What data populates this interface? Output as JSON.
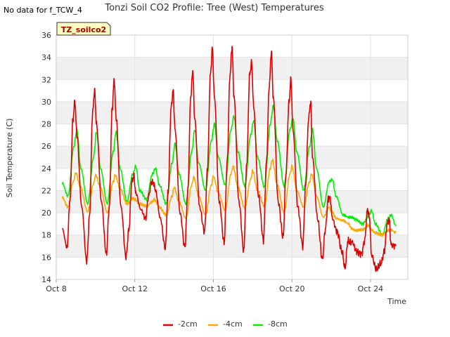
{
  "page": {
    "no_data_note": "No data for f_TCW_4",
    "site_badge": "TZ_soilco2"
  },
  "colors": {
    "series_2cm": "#dd0000",
    "series_4cm": "#ffa500",
    "series_8cm": "#00ee00",
    "badge_bg": "#ffffc0",
    "badge_text": "#aa0000",
    "band": "#f0f0f0"
  },
  "chart_data": {
    "type": "line",
    "title": "Tonzi Soil CO2 Profile: Tree (West) Temperatures",
    "xlabel": "Time",
    "ylabel": "Soil Temperature (C)",
    "xlim": [
      8,
      25.9
    ],
    "ylim": [
      14,
      36
    ],
    "x_ticks": [
      {
        "value": 8,
        "label": "Oct 8"
      },
      {
        "value": 12,
        "label": "Oct 12"
      },
      {
        "value": 16,
        "label": "Oct 16"
      },
      {
        "value": 20,
        "label": "Oct 20"
      },
      {
        "value": 24,
        "label": "Oct 24"
      }
    ],
    "y_ticks": [
      14,
      16,
      18,
      20,
      22,
      24,
      26,
      28,
      30,
      32,
      34,
      36
    ],
    "legend": {
      "position": "bottom",
      "labels": [
        "-2cm",
        "-4cm",
        "-8cm"
      ]
    },
    "series": [
      {
        "name": "-2cm",
        "x": [
          8.3,
          8.55,
          8.7,
          8.85,
          8.95,
          9.05,
          9.3,
          9.55,
          9.7,
          9.85,
          9.95,
          10.05,
          10.3,
          10.55,
          10.7,
          10.85,
          10.95,
          11.05,
          11.3,
          11.55,
          11.7,
          11.85,
          11.95,
          12.05,
          12.3,
          12.55,
          12.7,
          12.85,
          12.95,
          13.05,
          13.3,
          13.55,
          13.7,
          13.85,
          13.95,
          14.05,
          14.3,
          14.55,
          14.7,
          14.85,
          14.95,
          15.05,
          15.3,
          15.55,
          15.7,
          15.85,
          15.95,
          16.05,
          16.3,
          16.55,
          16.7,
          16.85,
          16.95,
          17.05,
          17.3,
          17.55,
          17.7,
          17.85,
          17.95,
          18.05,
          18.3,
          18.55,
          18.7,
          18.85,
          18.95,
          19.05,
          19.3,
          19.55,
          19.7,
          19.85,
          19.95,
          20.05,
          20.3,
          20.55,
          20.7,
          20.85,
          20.95,
          21.05,
          21.3,
          21.55,
          21.7,
          21.85,
          21.95,
          22.05,
          22.3,
          22.55,
          22.7,
          22.85,
          22.95,
          23.05,
          23.3,
          23.55,
          23.7,
          23.85,
          23.95,
          24.05,
          24.3,
          24.55,
          24.7,
          24.85,
          24.95,
          25.05,
          25.3
        ],
        "values": [
          18.6,
          16.9,
          21.2,
          28.4,
          30.0,
          27.0,
          20.5,
          15.6,
          19.8,
          29.0,
          31.0,
          28.0,
          21.0,
          16.3,
          20.5,
          29.5,
          32.0,
          28.5,
          20.5,
          16.0,
          18.5,
          22.8,
          23.3,
          21.8,
          20.3,
          19.5,
          21.5,
          22.8,
          22.7,
          22.0,
          19.5,
          16.8,
          22.0,
          29.5,
          31.0,
          27.5,
          20.0,
          16.9,
          22.0,
          30.5,
          32.8,
          28.5,
          20.5,
          18.3,
          24.0,
          32.5,
          34.8,
          30.5,
          21.0,
          17.3,
          24.5,
          32.5,
          35.0,
          30.5,
          21.0,
          16.6,
          24.5,
          32.5,
          33.5,
          29.5,
          21.5,
          17.5,
          24.5,
          31.5,
          34.5,
          30.5,
          21.0,
          17.8,
          23.5,
          30.0,
          32.0,
          27.5,
          20.5,
          17.0,
          22.5,
          28.5,
          30.0,
          25.0,
          19.5,
          15.8,
          18.5,
          21.3,
          21.3,
          19.5,
          18.3,
          16.5,
          15.0,
          17.5,
          17.3,
          17.4,
          16.5,
          16.3,
          17.5,
          20.3,
          19.5,
          16.2,
          14.9,
          15.5,
          16.5,
          19.0,
          19.4,
          17.1,
          17.0
        ]
      },
      {
        "name": "-4cm",
        "x": [
          8.3,
          8.6,
          8.85,
          9.0,
          9.2,
          9.6,
          9.9,
          10.0,
          10.25,
          10.6,
          10.9,
          11.0,
          11.25,
          11.6,
          11.9,
          12.0,
          12.25,
          12.6,
          12.9,
          13.0,
          13.25,
          13.6,
          13.9,
          14.0,
          14.25,
          14.6,
          14.9,
          15.0,
          15.25,
          15.6,
          15.9,
          16.0,
          16.25,
          16.6,
          16.9,
          17.0,
          17.25,
          17.6,
          17.9,
          18.0,
          18.25,
          18.6,
          18.9,
          19.0,
          19.25,
          19.6,
          19.9,
          20.0,
          20.25,
          20.6,
          20.9,
          21.0,
          21.25,
          21.6,
          21.9,
          22.0,
          22.25,
          22.6,
          22.9,
          23.0,
          23.25,
          23.6,
          23.9,
          24.0,
          24.25,
          24.6,
          24.9,
          25.0,
          25.3
        ],
        "values": [
          21.4,
          20.5,
          22.7,
          23.6,
          22.5,
          20.1,
          22.6,
          23.4,
          22.3,
          20.0,
          22.8,
          23.4,
          22.2,
          20.8,
          21.3,
          21.2,
          20.8,
          20.6,
          21.0,
          21.2,
          20.5,
          19.8,
          21.5,
          22.3,
          21.0,
          19.5,
          22.5,
          23.2,
          21.5,
          19.8,
          22.5,
          23.3,
          21.8,
          20.2,
          23.5,
          24.2,
          22.3,
          20.4,
          23.0,
          23.8,
          22.0,
          20.6,
          24.0,
          24.8,
          22.5,
          20.0,
          23.5,
          24.2,
          22.0,
          20.5,
          22.8,
          23.5,
          21.5,
          19.6,
          20.5,
          20.2,
          19.5,
          19.3,
          19.0,
          18.6,
          18.4,
          18.5,
          18.9,
          18.5,
          18.2,
          18.0,
          18.4,
          18.5,
          18.2
        ]
      },
      {
        "name": "-8cm",
        "x": [
          8.3,
          8.6,
          8.9,
          9.05,
          9.25,
          9.6,
          9.9,
          10.05,
          10.25,
          10.6,
          10.9,
          11.05,
          11.25,
          11.6,
          11.9,
          12.05,
          12.25,
          12.6,
          12.9,
          13.05,
          13.25,
          13.6,
          13.9,
          14.05,
          14.25,
          14.6,
          14.9,
          15.05,
          15.25,
          15.6,
          15.9,
          16.05,
          16.25,
          16.6,
          16.9,
          17.05,
          17.25,
          17.6,
          17.9,
          18.05,
          18.25,
          18.6,
          18.9,
          19.05,
          19.25,
          19.6,
          19.9,
          20.05,
          20.25,
          20.6,
          20.9,
          21.05,
          21.25,
          21.6,
          21.9,
          22.05,
          22.25,
          22.6,
          22.9,
          23.05,
          23.25,
          23.6,
          23.9,
          24.05,
          24.25,
          24.6,
          24.9,
          25.05,
          25.3
        ],
        "values": [
          22.7,
          21.5,
          26.0,
          27.5,
          24.0,
          20.8,
          25.0,
          27.3,
          24.0,
          20.8,
          25.5,
          27.3,
          24.0,
          21.0,
          23.5,
          24.2,
          22.0,
          21.2,
          23.5,
          24.0,
          22.5,
          20.8,
          24.5,
          26.2,
          23.5,
          20.8,
          25.5,
          27.5,
          24.5,
          22.0,
          26.5,
          28.0,
          25.0,
          22.5,
          27.5,
          28.7,
          25.5,
          22.4,
          27.0,
          28.3,
          25.0,
          22.3,
          28.0,
          29.6,
          26.5,
          22.4,
          27.5,
          28.5,
          25.5,
          22.0,
          26.0,
          27.5,
          24.0,
          20.5,
          22.8,
          23.0,
          21.5,
          19.8,
          19.6,
          19.6,
          19.4,
          19.0,
          19.7,
          20.2,
          19.0,
          18.0,
          19.5,
          19.8,
          18.8
        ]
      }
    ]
  }
}
